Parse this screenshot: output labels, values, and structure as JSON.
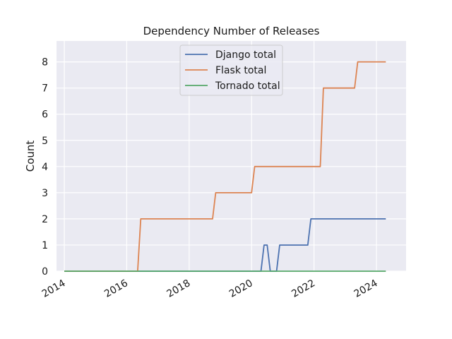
{
  "chart_data": {
    "type": "line",
    "title": "Dependency Number of Releases",
    "xlabel": "",
    "ylabel": "Count",
    "xlim": [
      2013.75,
      2024.95
    ],
    "ylim": [
      0,
      8.8
    ],
    "x_ticks": [
      2014,
      2016,
      2018,
      2020,
      2022,
      2024
    ],
    "x_tick_labels": [
      "2014",
      "2016",
      "2018",
      "2020",
      "2022",
      "2024"
    ],
    "y_ticks": [
      0,
      1,
      2,
      3,
      4,
      5,
      6,
      7,
      8
    ],
    "y_tick_labels": [
      "0",
      "1",
      "2",
      "3",
      "4",
      "5",
      "6",
      "7",
      "8"
    ],
    "grid": true,
    "legend_position": "top-center",
    "series": [
      {
        "name": "Django total",
        "color": "#4c72b0",
        "points": [
          [
            2014.0,
            0
          ],
          [
            2020.3,
            0
          ],
          [
            2020.4,
            1
          ],
          [
            2020.5,
            1
          ],
          [
            2020.6,
            0
          ],
          [
            2020.8,
            0
          ],
          [
            2020.9,
            1
          ],
          [
            2021.8,
            1
          ],
          [
            2021.9,
            2
          ],
          [
            2024.3,
            2
          ]
        ]
      },
      {
        "name": "Flask total",
        "color": "#dd8452",
        "points": [
          [
            2014.0,
            0
          ],
          [
            2016.35,
            0
          ],
          [
            2016.45,
            2
          ],
          [
            2018.75,
            2
          ],
          [
            2018.85,
            3
          ],
          [
            2020.0,
            3
          ],
          [
            2020.1,
            4
          ],
          [
            2022.2,
            4
          ],
          [
            2022.3,
            7
          ],
          [
            2023.3,
            7
          ],
          [
            2023.4,
            8
          ],
          [
            2024.3,
            8
          ]
        ]
      },
      {
        "name": "Tornado total",
        "color": "#55a868",
        "points": [
          [
            2014.0,
            0
          ],
          [
            2024.3,
            0
          ]
        ]
      }
    ]
  }
}
